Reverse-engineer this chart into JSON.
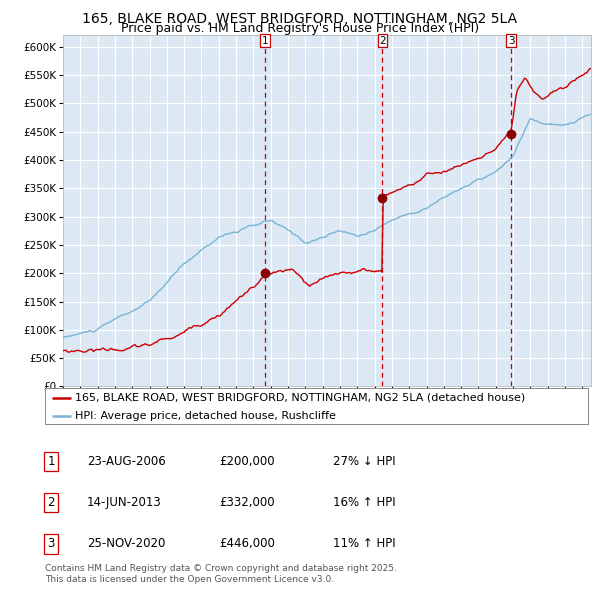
{
  "title1": "165, BLAKE ROAD, WEST BRIDGFORD, NOTTINGHAM, NG2 5LA",
  "title2": "Price paid vs. HM Land Registry's House Price Index (HPI)",
  "legend_red": "165, BLAKE ROAD, WEST BRIDGFORD, NOTTINGHAM, NG2 5LA (detached house)",
  "legend_blue": "HPI: Average price, detached house, Rushcliffe",
  "transactions": [
    {
      "num": 1,
      "date": "23-AUG-2006",
      "price": 200000,
      "pct": "27%",
      "dir": "↓",
      "tx_x": 2006.647,
      "tx_y": 200000
    },
    {
      "num": 2,
      "date": "14-JUN-2013",
      "price": 332000,
      "pct": "16%",
      "dir": "↑",
      "tx_x": 2013.452,
      "tx_y": 332000
    },
    {
      "num": 3,
      "date": "25-NOV-2020",
      "price": 446000,
      "pct": "11%",
      "dir": "↑",
      "tx_x": 2020.899,
      "tx_y": 446000
    }
  ],
  "footnote1": "Contains HM Land Registry data © Crown copyright and database right 2025.",
  "footnote2": "This data is licensed under the Open Government Licence v3.0.",
  "ylim": [
    0,
    600000
  ],
  "ytick_values": [
    0,
    50000,
    100000,
    150000,
    200000,
    250000,
    300000,
    350000,
    400000,
    450000,
    500000,
    550000,
    600000
  ],
  "xlim_start": 1995.0,
  "xlim_end": 2025.5,
  "bg_color": "#dce9f5",
  "grid_color": "#ffffff",
  "red_color": "#cc0000",
  "blue_color": "#7ab3d3",
  "marker_color": "#8b0000",
  "title1_fontsize": 10,
  "title2_fontsize": 9,
  "axis_label_fontsize": 7.5,
  "legend_fontsize": 8,
  "table_fontsize": 8.5,
  "footnote_fontsize": 6.5
}
